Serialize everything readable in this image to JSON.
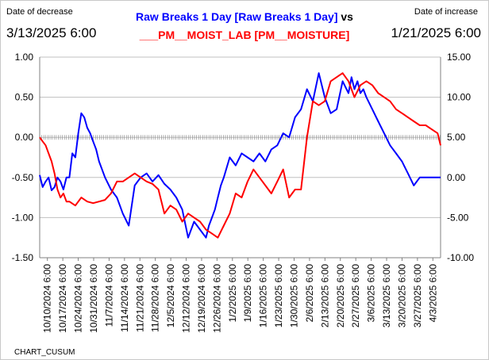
{
  "header": {
    "left_caption": "Date of decrease",
    "left_date": "3/13/2025 6:00",
    "right_caption": "Date of increase",
    "right_date": "1/21/2025 6:00",
    "title_blue": "Raw Breaks 1 Day [Raw Breaks 1 Day]",
    "title_vs": " vs",
    "title_red": "___PM__MOIST_LAB [PM__MOISTURE]"
  },
  "footer": {
    "label": "CHART_CUSUM"
  },
  "colors": {
    "primary_series": "#0000ff",
    "secondary_series": "#ff0000",
    "grid": "#c0c0c0"
  },
  "chart_data": {
    "type": "line",
    "x_tick_labels": [
      "10/10/2024 6:00",
      "10/17/2024 6:00",
      "10/24/2024 6:00",
      "10/31/2024 6:00",
      "11/7/2024 6:00",
      "11/14/2024 6:00",
      "11/21/2024 6:00",
      "11/28/2024 6:00",
      "12/5/2024 6:00",
      "12/12/2024 6:00",
      "12/19/2024 6:00",
      "12/26/2024 6:00",
      "1/2/2025 6:00",
      "1/9/2025 6:00",
      "1/16/2025 6:00",
      "1/23/2025 6:00",
      "1/30/2025 6:00",
      "2/6/2025 6:00",
      "2/13/2025 6:00",
      "2/20/2025 6:00",
      "2/27/2025 6:00",
      "3/6/2025 6:00",
      "3/13/2025 6:00",
      "3/20/2025 6:00",
      "3/27/2025 6:00",
      "4/3/2025 6:00"
    ],
    "y_left": {
      "ticks": [
        "1.00",
        "0.50",
        "0.00",
        "-0.50",
        "-1.00",
        "-1.50"
      ],
      "ylim": [
        -1.5,
        1.0
      ]
    },
    "y_right": {
      "ticks": [
        "15.00",
        "10.00",
        "5.00",
        "0.00",
        "-5.00",
        "-10.00"
      ],
      "ylim": [
        -10.0,
        15.0
      ]
    },
    "grid": "horizontal",
    "x_range": [
      0,
      27
    ],
    "series": [
      {
        "axis": "left",
        "color": "#0000ff",
        "x": [
          0.0,
          0.2,
          0.4,
          0.6,
          0.8,
          1.0,
          1.2,
          1.4,
          1.6,
          1.8,
          2.0,
          2.2,
          2.4,
          2.6,
          2.8,
          3.0,
          3.2,
          3.4,
          3.6,
          3.8,
          4.0,
          4.4,
          4.8,
          5.2,
          5.6,
          6.0,
          6.4,
          6.6,
          6.8,
          7.2,
          7.6,
          8.0,
          8.4,
          8.8,
          9.2,
          9.6,
          10.0,
          10.4,
          10.8,
          11.2,
          11.4,
          11.6,
          11.8,
          12.0,
          12.2,
          12.4,
          12.8,
          13.2,
          13.6,
          14.0,
          14.4,
          14.8,
          15.2,
          15.6,
          16.0,
          16.4,
          16.8,
          17.2,
          17.6,
          18.0,
          18.4,
          18.8,
          19.2,
          19.6,
          20.0,
          20.4,
          20.8,
          21.0,
          21.2,
          21.4,
          21.6,
          21.8,
          22.0,
          22.4,
          22.8,
          23.2,
          23.6,
          24.0,
          24.4,
          24.8,
          25.2,
          25.6,
          26.0,
          26.4,
          26.8,
          27.0
        ],
        "y": [
          -0.47,
          -0.62,
          -0.55,
          -0.5,
          -0.66,
          -0.62,
          -0.5,
          -0.55,
          -0.65,
          -0.5,
          -0.5,
          -0.2,
          -0.25,
          0.05,
          0.3,
          0.25,
          0.12,
          0.05,
          -0.05,
          -0.15,
          -0.3,
          -0.5,
          -0.65,
          -0.75,
          -0.95,
          -1.1,
          -0.6,
          -0.55,
          -0.5,
          -0.45,
          -0.55,
          -0.47,
          -0.58,
          -0.65,
          -0.75,
          -0.9,
          -1.25,
          -1.05,
          -1.15,
          -1.25,
          -1.1,
          -1.0,
          -0.9,
          -0.75,
          -0.6,
          -0.5,
          -0.25,
          -0.35,
          -0.2,
          -0.25,
          -0.3,
          -0.2,
          -0.3,
          -0.15,
          -0.1,
          0.05,
          0.0,
          0.25,
          0.35,
          0.6,
          0.45,
          0.8,
          0.5,
          0.3,
          0.35,
          0.7,
          0.55,
          0.75,
          0.6,
          0.7,
          0.55,
          0.6,
          0.5,
          0.35,
          0.2,
          0.05,
          -0.1,
          -0.2,
          -0.3,
          -0.45,
          -0.6,
          -0.5,
          -0.5,
          -0.5,
          -0.5,
          -0.5
        ]
      },
      {
        "axis": "right",
        "color": "#ff0000",
        "x": [
          0.0,
          0.2,
          0.4,
          0.6,
          0.8,
          1.0,
          1.2,
          1.4,
          1.6,
          1.8,
          2.0,
          2.4,
          2.8,
          3.2,
          3.6,
          4.0,
          4.4,
          4.8,
          5.2,
          5.6,
          6.0,
          6.4,
          6.8,
          7.2,
          7.6,
          8.0,
          8.4,
          8.8,
          9.2,
          9.6,
          10.0,
          10.4,
          10.8,
          11.2,
          11.6,
          12.0,
          12.4,
          12.8,
          13.2,
          13.6,
          14.0,
          14.4,
          14.8,
          15.2,
          15.6,
          16.0,
          16.4,
          16.8,
          17.2,
          17.6,
          18.0,
          18.4,
          18.8,
          19.2,
          19.6,
          20.0,
          20.4,
          20.8,
          21.2,
          21.6,
          22.0,
          22.4,
          22.8,
          23.2,
          23.6,
          24.0,
          24.4,
          24.8,
          25.2,
          25.6,
          26.0,
          26.4,
          26.8,
          27.0
        ],
        "y": [
          5.0,
          4.5,
          4.0,
          3.0,
          2.0,
          0.5,
          -1.5,
          -2.5,
          -2.0,
          -3.0,
          -3.0,
          -3.5,
          -2.5,
          -3.0,
          -3.2,
          -3.0,
          -2.8,
          -2.0,
          -0.5,
          -0.5,
          0.0,
          0.5,
          0.0,
          -0.5,
          -0.8,
          -1.5,
          -4.5,
          -3.5,
          -4.0,
          -5.5,
          -4.5,
          -5.0,
          -5.5,
          -6.5,
          -7.0,
          -7.5,
          -6.0,
          -4.5,
          -2.0,
          -2.5,
          -0.5,
          1.0,
          0.0,
          -1.0,
          -2.0,
          -0.5,
          1.0,
          -2.5,
          -1.5,
          -1.5,
          5.0,
          9.5,
          9.0,
          9.5,
          12.0,
          12.5,
          13.0,
          12.0,
          10.0,
          11.5,
          12.0,
          11.5,
          10.5,
          10.0,
          9.5,
          8.5,
          8.0,
          7.5,
          7.0,
          6.5,
          6.5,
          6.0,
          5.5,
          4.0
        ]
      }
    ]
  }
}
